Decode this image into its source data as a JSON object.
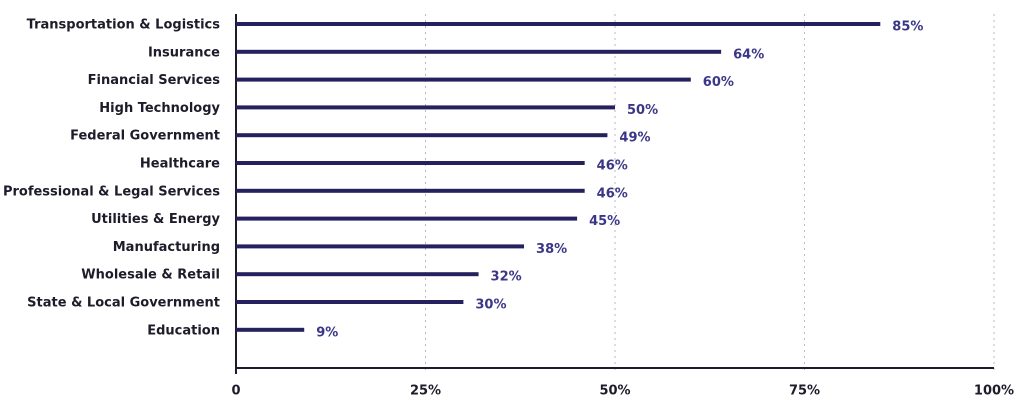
{
  "chart_data": {
    "type": "hbar",
    "categories": [
      "Transportation & Logistics",
      "Insurance",
      "Financial Services",
      "High Technology",
      "Federal Government",
      "Healthcare",
      "Professional & Legal Services",
      "Utilities & Energy",
      "Manufacturing",
      "Wholesale & Retail",
      "State & Local Government",
      "Education"
    ],
    "values": [
      85,
      64,
      60,
      50,
      49,
      46,
      46,
      45,
      38,
      32,
      30,
      9
    ],
    "value_labels": [
      "85%",
      "64%",
      "60%",
      "50%",
      "49%",
      "46%",
      "46%",
      "45%",
      "38%",
      "32%",
      "30%",
      "9%"
    ],
    "color": "#24215e",
    "xlim": [
      0,
      100
    ],
    "xticks": [
      0,
      {
        "value": 25,
        "label": "25%"
      },
      {
        "value": 50,
        "label": "50%"
      },
      {
        "value": 75,
        "label": "75%"
      },
      {
        "value": 100,
        "label": "100%"
      }
    ],
    "grid": true
  }
}
